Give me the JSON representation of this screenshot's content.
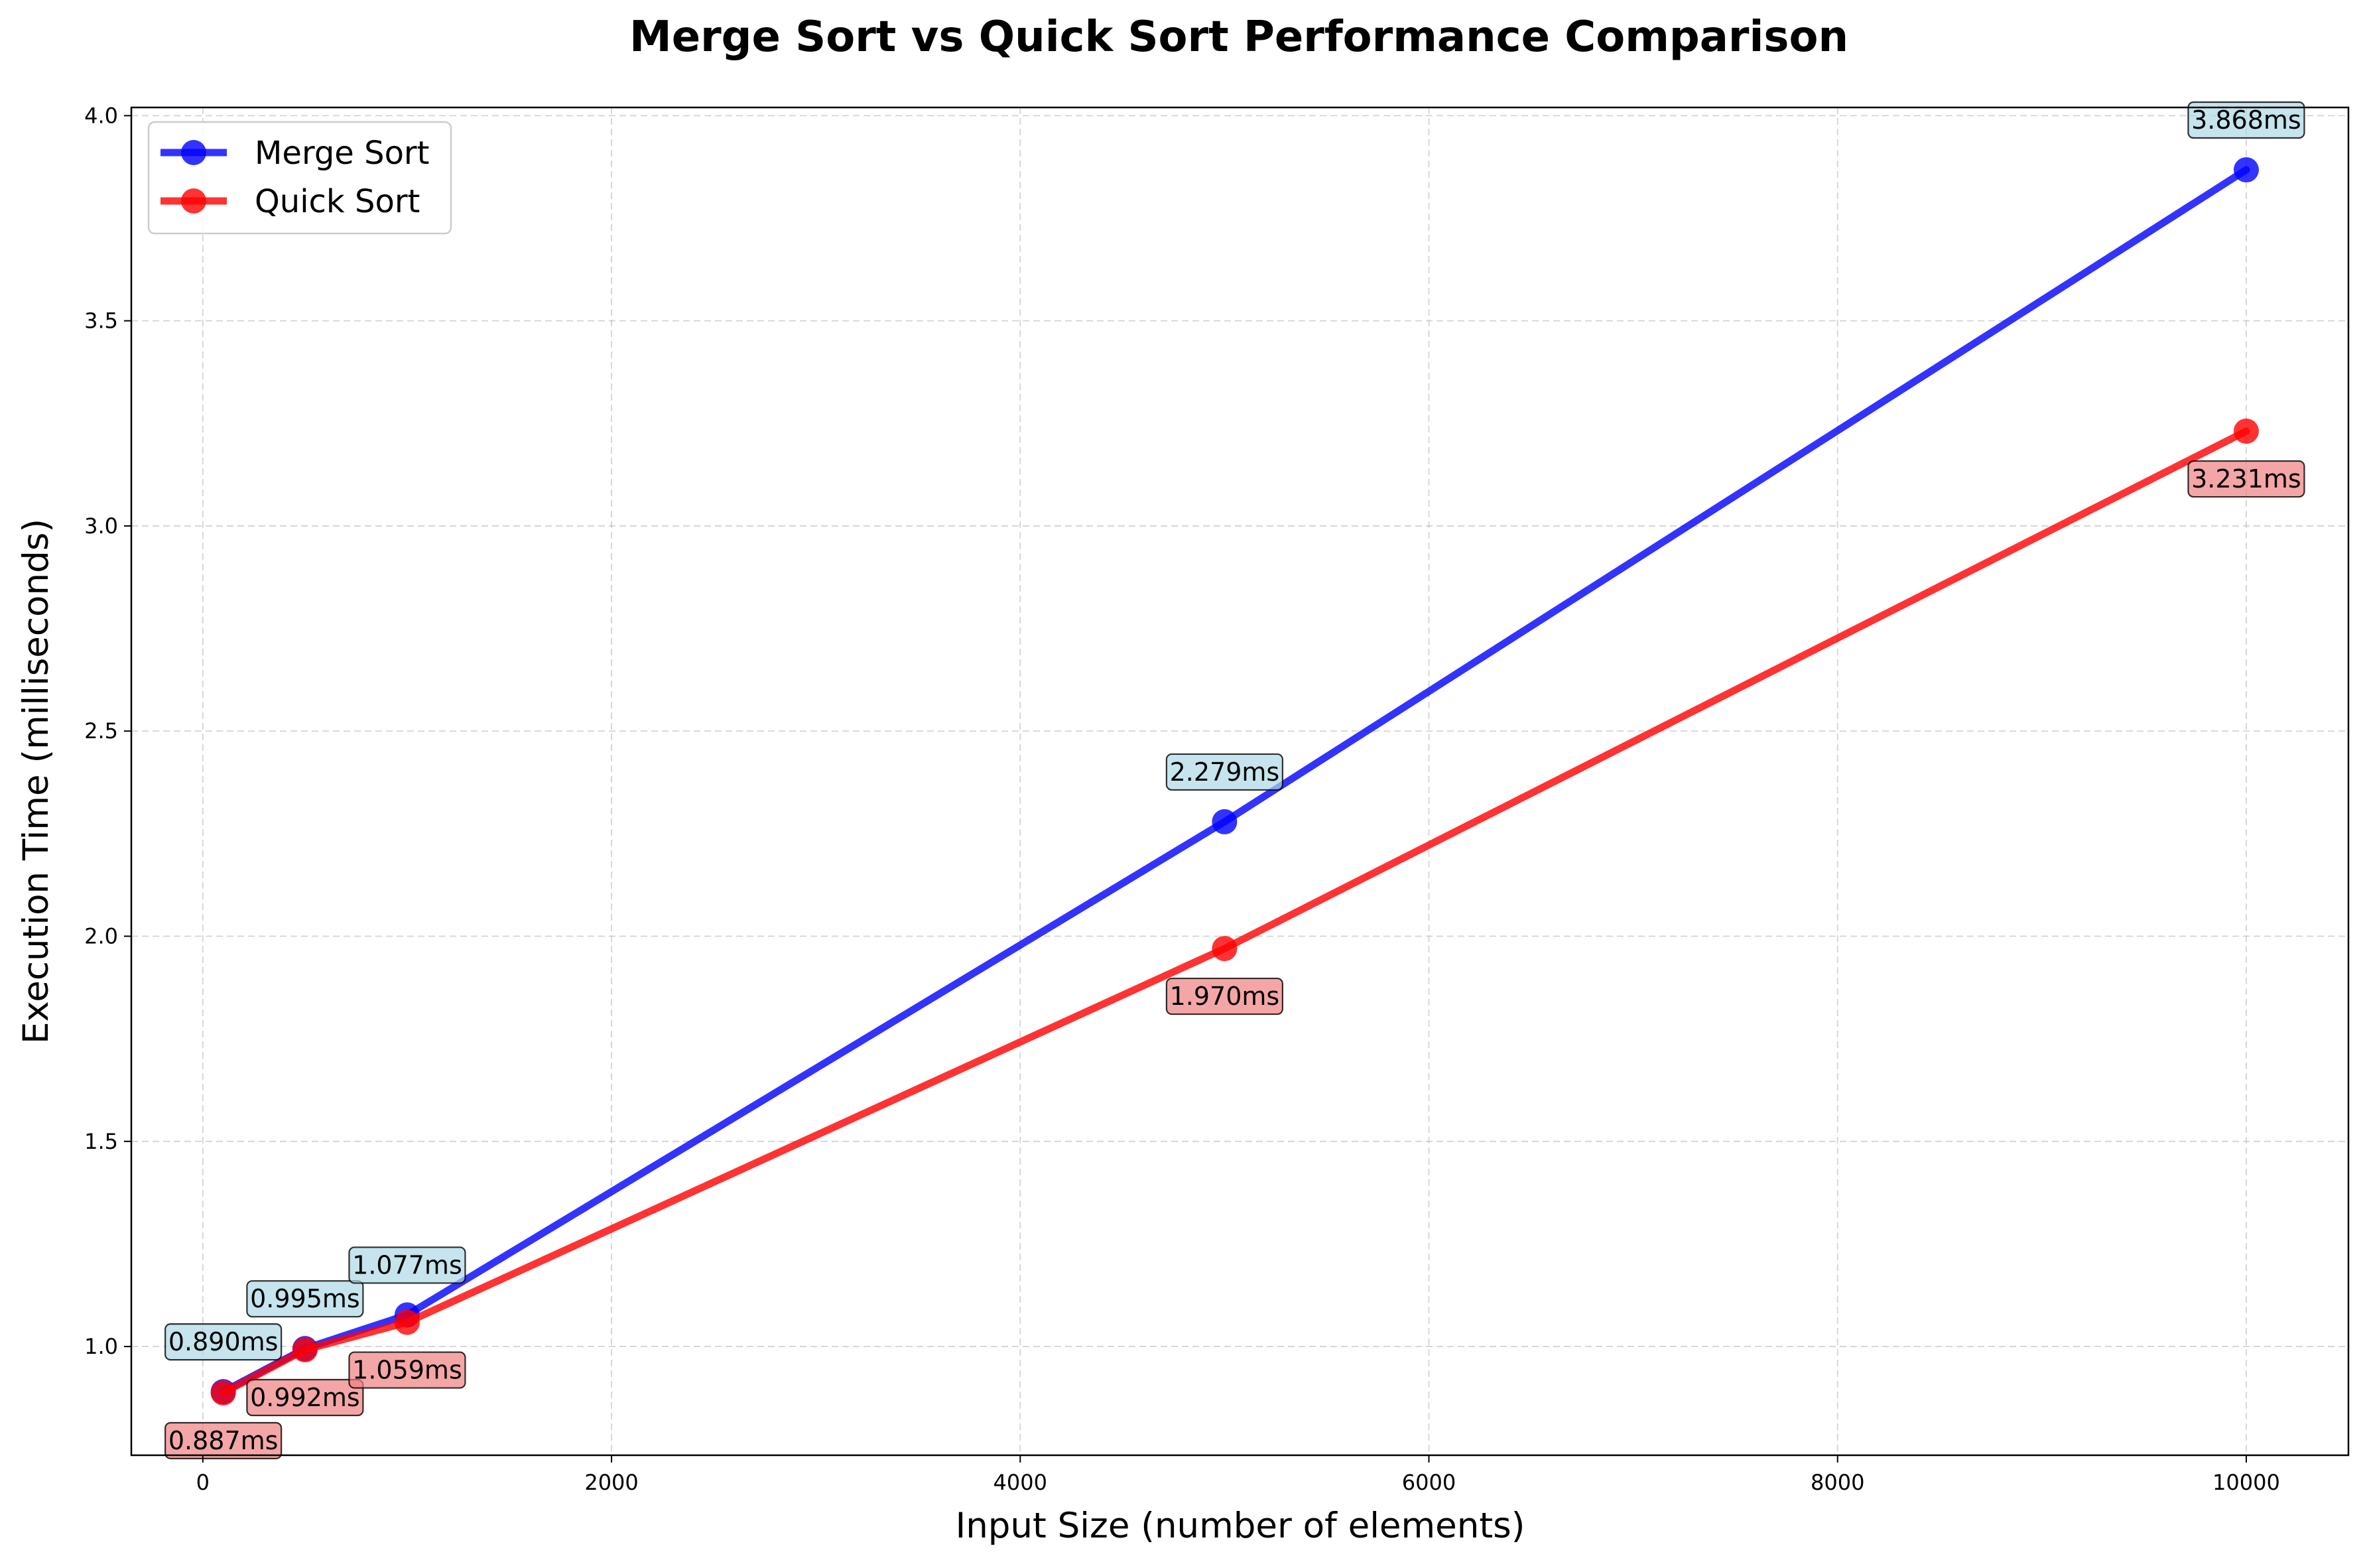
{
  "chart_data": {
    "type": "line",
    "title": "Merge Sort vs Quick Sort Performance Comparison",
    "xlabel": "Input Size (number of elements)",
    "ylabel": "Execution Time (milliseconds)",
    "xlim": [
      -350,
      10500
    ],
    "ylim": [
      0.735,
      4.02
    ],
    "x_ticks": [
      0,
      2000,
      4000,
      6000,
      8000,
      10000
    ],
    "x_tick_labels": [
      "0",
      "2000",
      "4000",
      "6000",
      "8000",
      "10000"
    ],
    "y_ticks": [
      1.0,
      1.5,
      2.0,
      2.5,
      3.0,
      3.5,
      4.0
    ],
    "y_tick_labels": [
      "1.0",
      "1.5",
      "2.0",
      "2.5",
      "3.0",
      "3.5",
      "4.0"
    ],
    "grid": true,
    "legend_position": "top-left",
    "x": [
      100,
      500,
      1000,
      5000,
      10000
    ],
    "series": [
      {
        "name": "Merge Sort",
        "color": "#0000ff",
        "label_bg": "#add8e6",
        "label_position": "above",
        "values": [
          0.89,
          0.995,
          1.077,
          2.279,
          3.868
        ],
        "labels": [
          "0.890ms",
          "0.995ms",
          "1.077ms",
          "2.279ms",
          "3.868ms"
        ]
      },
      {
        "name": "Quick Sort",
        "color": "#ff0000",
        "label_bg": "#f08080",
        "label_position": "below",
        "values": [
          0.887,
          0.992,
          1.059,
          1.97,
          3.231
        ],
        "labels": [
          "0.887ms",
          "0.992ms",
          "1.059ms",
          "1.970ms",
          "3.231ms"
        ]
      }
    ]
  }
}
